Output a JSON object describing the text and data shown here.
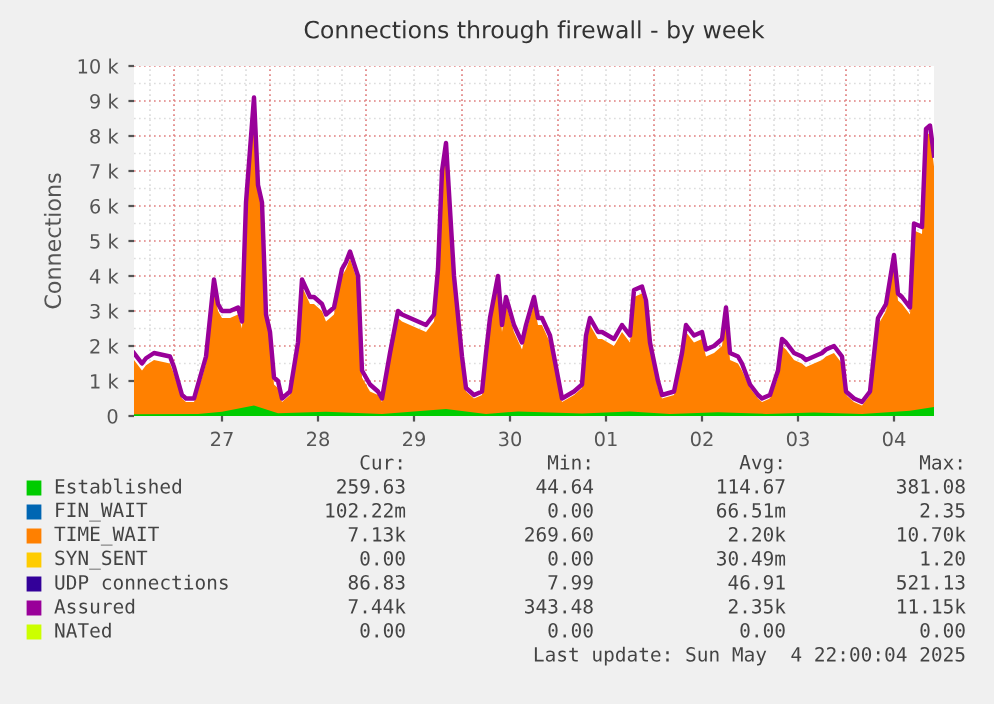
{
  "chart_data": {
    "type": "area",
    "title": "Connections through firewall - by week",
    "ylabel": "Connections",
    "x": [
      "2025-04-26T14:00",
      "2025-04-26T16:00",
      "2025-04-26T17:00",
      "2025-04-26T19:00",
      "2025-04-26T21:00",
      "2025-04-26T23:00",
      "2025-04-27T00:00",
      "2025-04-27T02:00",
      "2025-04-27T03:00",
      "2025-04-27T05:00",
      "2025-04-27T07:00",
      "2025-04-27T08:00",
      "2025-04-27T09:00",
      "2025-04-27T10:00",
      "2025-04-27T11:00",
      "2025-04-27T12:00",
      "2025-04-27T14:00",
      "2025-04-27T16:00",
      "2025-04-27T17:00",
      "2025-04-27T18:00",
      "2025-04-27T20:00",
      "2025-04-27T21:00",
      "2025-04-27T22:00",
      "2025-04-27T23:00",
      "2025-04-28T00:00",
      "2025-04-28T01:00",
      "2025-04-28T02:00",
      "2025-04-28T03:00",
      "2025-04-28T05:00",
      "2025-04-28T07:00",
      "2025-04-28T08:00",
      "2025-04-28T10:00",
      "2025-04-28T11:00",
      "2025-04-28T13:00",
      "2025-04-28T14:00",
      "2025-04-28T16:00",
      "2025-04-28T18:00",
      "2025-04-28T19:00",
      "2025-04-28T20:00",
      "2025-04-28T22:00",
      "2025-04-28T23:00",
      "2025-04-29T01:00",
      "2025-04-29T03:00",
      "2025-04-29T04:00",
      "2025-04-29T06:00",
      "2025-04-29T08:00",
      "2025-04-29T09:00",
      "2025-04-29T11:00",
      "2025-04-29T13:00",
      "2025-04-29T15:00",
      "2025-04-29T17:00",
      "2025-04-29T18:00",
      "2025-04-29T19:00",
      "2025-04-29T20:00",
      "2025-04-29T21:00",
      "2025-04-29T22:00",
      "2025-04-30T00:00",
      "2025-04-30T01:00",
      "2025-04-30T03:00",
      "2025-04-30T05:00",
      "2025-04-30T06:00",
      "2025-04-30T07:00",
      "2025-04-30T09:00",
      "2025-04-30T10:00",
      "2025-04-30T11:00",
      "2025-04-30T13:00",
      "2025-04-30T15:00",
      "2025-04-30T16:00",
      "2025-04-30T18:00",
      "2025-04-30T19:00",
      "2025-04-30T20:00",
      "2025-04-30T22:00",
      "2025-05-01T00:00",
      "2025-05-01T01:00",
      "2025-05-01T04:00",
      "2025-05-01T06:00",
      "2025-05-01T07:00",
      "2025-05-01T08:00",
      "2025-05-01T10:00",
      "2025-05-01T11:00",
      "2025-05-01T14:00",
      "2025-05-01T16:00",
      "2025-05-01T18:00",
      "2025-05-01T19:00",
      "2025-05-01T21:00",
      "2025-05-01T22:00",
      "2025-05-01T23:00",
      "2025-05-02T01:00",
      "2025-05-02T02:00",
      "2025-05-02T05:00",
      "2025-05-02T07:00",
      "2025-05-02T08:00",
      "2025-05-02T10:00",
      "2025-05-02T12:00",
      "2025-05-02T13:00",
      "2025-05-02T15:00",
      "2025-05-02T17:00",
      "2025-05-02T18:00",
      "2025-05-02T19:00",
      "2025-05-02T21:00",
      "2025-05-02T22:00",
      "2025-05-03T00:00",
      "2025-05-03T02:00",
      "2025-05-03T03:00",
      "2025-05-03T05:00",
      "2025-05-03T07:00",
      "2025-05-03T08:00",
      "2025-05-03T09:00",
      "2025-05-03T11:00",
      "2025-05-03T13:00",
      "2025-05-03T14:00",
      "2025-05-03T16:00",
      "2025-05-03T18:00",
      "2025-05-03T19:00",
      "2025-05-03T21:00",
      "2025-05-03T23:00",
      "2025-05-04T00:00",
      "2025-05-04T02:00",
      "2025-05-04T04:00",
      "2025-05-04T06:00",
      "2025-05-04T08:00",
      "2025-05-04T10:00",
      "2025-05-04T12:00",
      "2025-05-04T13:00",
      "2025-05-04T14:00",
      "2025-05-04T16:00",
      "2025-05-04T17:00",
      "2025-05-04T19:00",
      "2025-05-04T20:00",
      "2025-05-04T21:00",
      "2025-05-04T22:00"
    ],
    "series": [
      {
        "name": "Established",
        "color": "#00cc00",
        "type": "area",
        "x": [
          "2025-04-26T14:00",
          "2025-04-27T06:00",
          "2025-04-27T12:00",
          "2025-04-27T20:00",
          "2025-04-28T02:00",
          "2025-04-28T14:00",
          "2025-04-29T04:00",
          "2025-04-29T20:00",
          "2025-04-30T06:00",
          "2025-04-30T14:00",
          "2025-05-01T06:00",
          "2025-05-01T18:00",
          "2025-05-02T04:00",
          "2025-05-02T16:00",
          "2025-05-03T04:00",
          "2025-05-03T16:00",
          "2025-05-04T04:00",
          "2025-05-04T16:00",
          "2025-05-04T22:00"
        ],
        "values": [
          50,
          60,
          120,
          300,
          80,
          120,
          60,
          200,
          60,
          130,
          70,
          130,
          60,
          110,
          60,
          100,
          60,
          150,
          260
        ]
      },
      {
        "name": "FIN_WAIT",
        "color": "#0066b3",
        "type": "line",
        "values": [
          null,
          null,
          null,
          null,
          null,
          null,
          null,
          null,
          null,
          null,
          null,
          null,
          null,
          null,
          null,
          null,
          null,
          null,
          null,
          null,
          null,
          null,
          null,
          null,
          null,
          null,
          null,
          null,
          null,
          null,
          null,
          null,
          null,
          null,
          null,
          null,
          null,
          null,
          null,
          null,
          null,
          null,
          null,
          null,
          null,
          null,
          null,
          null,
          null,
          null,
          null,
          null,
          null,
          null,
          null,
          null,
          null,
          null,
          null,
          null,
          null,
          null,
          null,
          null,
          null,
          null,
          null,
          null,
          null,
          null,
          null,
          null,
          null,
          null,
          null,
          null,
          null,
          null,
          null,
          null,
          null,
          null,
          null,
          null,
          null,
          null,
          null,
          null,
          null,
          null,
          null,
          null,
          null,
          null,
          null,
          null,
          null,
          null,
          null,
          null,
          null,
          null,
          null,
          null,
          null,
          null,
          null,
          null,
          null,
          null,
          null,
          null,
          null,
          null,
          null,
          null,
          null,
          null,
          null,
          null,
          null,
          null,
          null,
          null,
          null,
          null,
          null,
          null,
          null,
          null,
          null
        ]
      },
      {
        "name": "TIME_WAIT",
        "color": "#ff8000",
        "values": [
          1600,
          1300,
          1450,
          1600,
          1550,
          1500,
          1200,
          500,
          400,
          400,
          1100,
          1500,
          2600,
          3700,
          3000,
          2800,
          2800,
          2900,
          2500,
          5900,
          8900,
          6400,
          5900,
          2700,
          2200,
          900,
          800,
          400,
          600,
          1900,
          3700,
          3200,
          3200,
          3000,
          2700,
          2900,
          4000,
          4200,
          4500,
          3800,
          1100,
          700,
          600,
          400,
          1600,
          2800,
          2700,
          2600,
          2500,
          2400,
          2700,
          4000,
          6800,
          7600,
          5700,
          3800,
          1500,
          700,
          500,
          600,
          1600,
          2600,
          3800,
          2400,
          3200,
          2400,
          1900,
          2400,
          3200,
          2600,
          2600,
          2100,
          900,
          400,
          600,
          800,
          2100,
          2600,
          2200,
          2200,
          2000,
          2400,
          2100,
          3400,
          3500,
          3100,
          1900,
          800,
          500,
          600,
          1600,
          2400,
          2100,
          2200,
          1700,
          1800,
          2000,
          2900,
          1600,
          1500,
          1300,
          800,
          500,
          400,
          500,
          1100,
          2000,
          1900,
          1600,
          1500,
          1400,
          1500,
          1600,
          1700,
          1800,
          1500,
          600,
          400,
          300,
          600,
          2600,
          3000,
          4400,
          3300,
          3200,
          2900,
          5300,
          5200,
          8000,
          8100,
          7130
        ]
      },
      {
        "name": "SYN_SENT",
        "color": "#ffcc00",
        "type": "line",
        "values": [
          null,
          null,
          null,
          null,
          null,
          null,
          null,
          null,
          null,
          null,
          null,
          null,
          null,
          null,
          null,
          null,
          null,
          null,
          null,
          null,
          null,
          null,
          null,
          null,
          null,
          null,
          null,
          null,
          null,
          null,
          null,
          null,
          null,
          null,
          null,
          null,
          null,
          null,
          null,
          null,
          null,
          null,
          null,
          null,
          null,
          null,
          null,
          null,
          null,
          null,
          null,
          null,
          null,
          null,
          null,
          null,
          null,
          null,
          null,
          null,
          null,
          null,
          null,
          null,
          null,
          null,
          null,
          null,
          null,
          null,
          null,
          null,
          null,
          null,
          null,
          null,
          null,
          null,
          null,
          null,
          null,
          null,
          null,
          null,
          null,
          null,
          null,
          null,
          null,
          null,
          null,
          null,
          null,
          null,
          null,
          null,
          null,
          null,
          null,
          null,
          null,
          null,
          null,
          null,
          null,
          null,
          null,
          null,
          null,
          null,
          null,
          null,
          null,
          null,
          null,
          null,
          null,
          null,
          null,
          null,
          null,
          null,
          null,
          null,
          null,
          null,
          null,
          null,
          null,
          null,
          null
        ]
      },
      {
        "name": "UDP connections",
        "color": "#330099",
        "type": "line",
        "values": [
          null,
          null,
          null,
          null,
          null,
          null,
          null,
          null,
          null,
          null,
          null,
          null,
          null,
          null,
          null,
          null,
          null,
          null,
          null,
          null,
          null,
          null,
          null,
          null,
          null,
          null,
          null,
          null,
          null,
          null,
          null,
          null,
          null,
          null,
          null,
          null,
          null,
          null,
          null,
          null,
          null,
          null,
          null,
          null,
          null,
          null,
          null,
          null,
          null,
          null,
          null,
          null,
          null,
          null,
          null,
          null,
          null,
          null,
          null,
          null,
          null,
          null,
          null,
          null,
          null,
          null,
          null,
          null,
          null,
          null,
          null,
          null,
          null,
          null,
          null,
          null,
          null,
          null,
          null,
          null,
          null,
          null,
          null,
          null,
          null,
          null,
          null,
          null,
          null,
          null,
          null,
          null,
          null,
          null,
          null,
          null,
          null,
          null,
          null,
          null,
          null,
          null,
          null,
          null,
          null,
          null,
          null,
          null,
          null,
          null,
          null,
          null,
          null,
          null,
          null,
          null,
          null,
          null,
          null,
          null,
          null,
          null,
          null,
          null,
          null,
          null,
          null,
          null,
          null,
          null,
          null
        ]
      },
      {
        "name": "Assured",
        "color": "#990099",
        "type": "line",
        "values": [
          1800,
          1500,
          1650,
          1800,
          1750,
          1700,
          1400,
          600,
          500,
          500,
          1300,
          1700,
          2800,
          3900,
          3200,
          3000,
          3000,
          3100,
          2700,
          6100,
          9100,
          6600,
          6100,
          2900,
          2400,
          1100,
          1000,
          500,
          700,
          2100,
          3900,
          3400,
          3400,
          3200,
          2900,
          3100,
          4200,
          4400,
          4700,
          4000,
          1300,
          900,
          700,
          500,
          1800,
          3000,
          2900,
          2800,
          2700,
          2600,
          2900,
          4200,
          7000,
          7800,
          5900,
          4000,
          1700,
          800,
          600,
          700,
          1800,
          2800,
          4000,
          2600,
          3400,
          2600,
          2100,
          2600,
          3400,
          2800,
          2800,
          2300,
          1100,
          500,
          700,
          900,
          2300,
          2800,
          2400,
          2400,
          2200,
          2600,
          2300,
          3600,
          3700,
          3300,
          2100,
          1000,
          600,
          700,
          1800,
          2600,
          2300,
          2400,
          1900,
          2000,
          2200,
          3100,
          1800,
          1700,
          1500,
          900,
          600,
          500,
          600,
          1300,
          2200,
          2100,
          1800,
          1700,
          1600,
          1700,
          1800,
          1900,
          2000,
          1700,
          700,
          500,
          400,
          700,
          2800,
          3200,
          4600,
          3500,
          3400,
          3100,
          5500,
          5400,
          8200,
          8300,
          7440
        ]
      },
      {
        "name": "NATed",
        "color": "#ccff00",
        "type": "line",
        "values": [
          null,
          null,
          null,
          null,
          null,
          null,
          null,
          null,
          null,
          null,
          null,
          null,
          null,
          null,
          null,
          null,
          null,
          null,
          null,
          null,
          null,
          null,
          null,
          null,
          null,
          null,
          null,
          null,
          null,
          null,
          null,
          null,
          null,
          null,
          null,
          null,
          null,
          null,
          null,
          null,
          null,
          null,
          null,
          null,
          null,
          null,
          null,
          null,
          null,
          null,
          null,
          null,
          null,
          null,
          null,
          null,
          null,
          null,
          null,
          null,
          null,
          null,
          null,
          null,
          null,
          null,
          null,
          null,
          null,
          null,
          null,
          null,
          null,
          null,
          null,
          null,
          null,
          null,
          null,
          null,
          null,
          null,
          null,
          null,
          null,
          null,
          null,
          null,
          null,
          null,
          null,
          null,
          null,
          null,
          null,
          null,
          null,
          null,
          null,
          null,
          null,
          null,
          null,
          null,
          null,
          null,
          null,
          null,
          null,
          null,
          null,
          null,
          null,
          null,
          null,
          null,
          null,
          null,
          null,
          null,
          null,
          null,
          null,
          null,
          null,
          null,
          null,
          null,
          null,
          null,
          null
        ]
      }
    ],
    "xlim": [
      "2025-04-26T14:00",
      "2025-05-04T22:00"
    ],
    "xticks": [
      {
        "value": "2025-04-27T12:00",
        "label": "27"
      },
      {
        "value": "2025-04-28T12:00",
        "label": "28"
      },
      {
        "value": "2025-04-29T12:00",
        "label": "29"
      },
      {
        "value": "2025-04-30T12:00",
        "label": "30"
      },
      {
        "value": "2025-05-01T12:00",
        "label": "01"
      },
      {
        "value": "2025-05-02T12:00",
        "label": "02"
      },
      {
        "value": "2025-05-03T12:00",
        "label": "03"
      },
      {
        "value": "2025-05-04T12:00",
        "label": "04"
      }
    ],
    "ylim": [
      0,
      10000
    ],
    "yticks": [
      0,
      {
        "value": 1000,
        "label": "1 k"
      },
      {
        "value": 2000,
        "label": "2 k"
      },
      {
        "value": 3000,
        "label": "3 k"
      },
      {
        "value": 4000,
        "label": "4 k"
      },
      {
        "value": 5000,
        "label": "5 k"
      },
      {
        "value": 6000,
        "label": "6 k"
      },
      {
        "value": 7000,
        "label": "7 k"
      },
      {
        "value": 8000,
        "label": "8 k"
      },
      {
        "value": 9000,
        "label": "9 k"
      },
      {
        "value": 10000,
        "label": "10 k"
      }
    ],
    "grid": true,
    "legend": "bottom",
    "annotations": [
      "Cur:",
      "Min:",
      "Avg:",
      "Max:",
      "259.63",
      "44.64",
      "114.67",
      "381.08",
      "102.22m",
      "0.00",
      "66.51m",
      "2.35",
      "7.13k",
      "269.60",
      "2.20k",
      "10.70k",
      "0.00",
      "0.00",
      "30.49m",
      "1.20",
      "86.83",
      "7.99",
      "46.91",
      "521.13",
      "7.44k",
      "343.48",
      "2.35k",
      "11.15k",
      "0.00",
      "0.00",
      "0.00",
      "0.00",
      "Last update: Sun May  4 22:00:04 2025"
    ]
  }
}
